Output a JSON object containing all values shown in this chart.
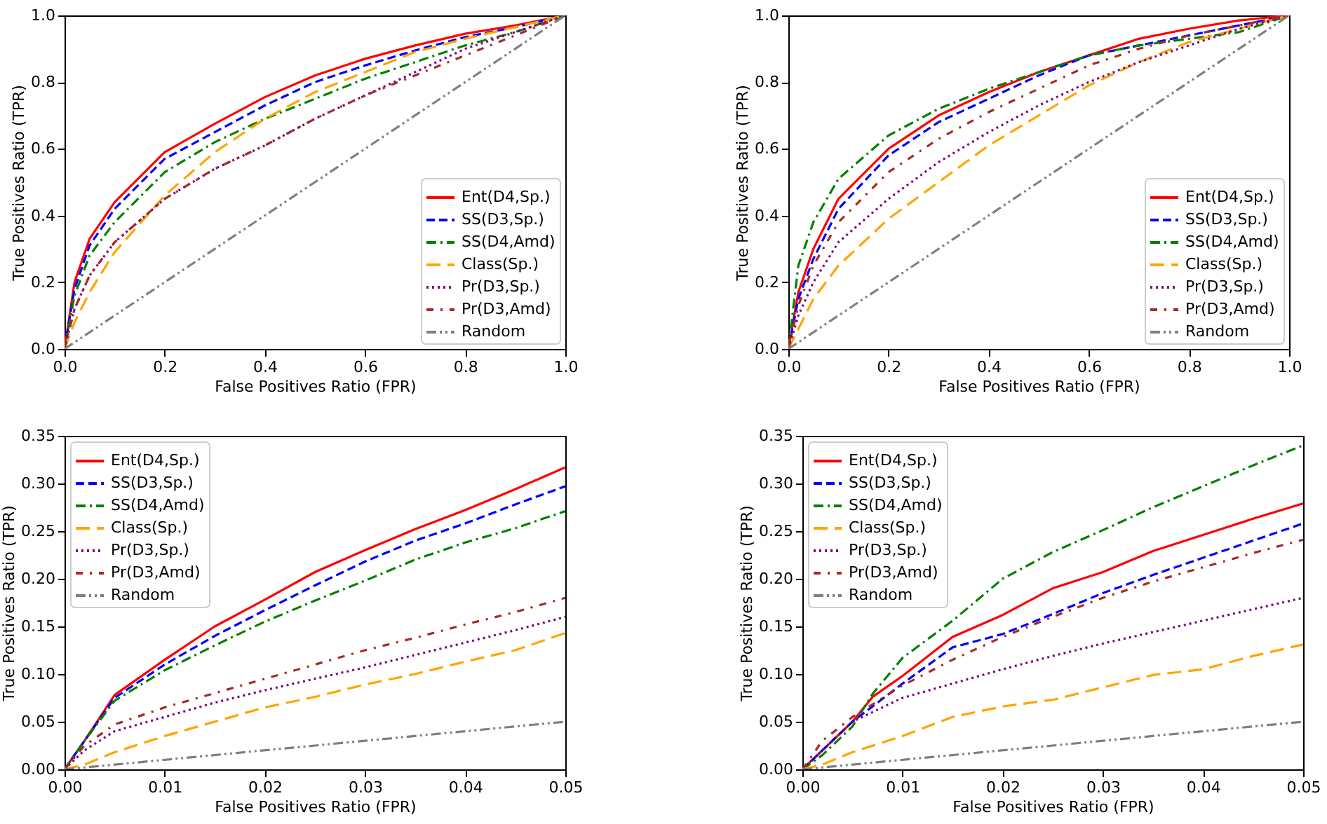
{
  "chart_data": [
    {
      "type": "line",
      "xlabel": "False Positives Ratio (FPR)",
      "ylabel": "True Positives Ratio (TPR)",
      "xlim": [
        0,
        1
      ],
      "ylim": [
        0,
        1
      ],
      "xticks": [
        {
          "value": 0,
          "label": "0.0"
        },
        {
          "value": 0.2,
          "label": "0.2"
        },
        {
          "value": 0.4,
          "label": "0.4"
        },
        {
          "value": 0.6,
          "label": "0.6"
        },
        {
          "value": 0.8,
          "label": "0.8"
        },
        {
          "value": 1,
          "label": "1.0"
        }
      ],
      "yticks": [
        {
          "value": 0,
          "label": "0.0"
        },
        {
          "value": 0.2,
          "label": "0.2"
        },
        {
          "value": 0.4,
          "label": "0.4"
        },
        {
          "value": 0.6,
          "label": "0.6"
        },
        {
          "value": 0.8,
          "label": "0.8"
        },
        {
          "value": 1,
          "label": "1.0"
        }
      ],
      "grid": false,
      "legend": "bottom right",
      "series": [
        {
          "name": "Ent(D4,Sp.)",
          "color": "#ff0000",
          "line_style": "solid",
          "x": [
            0,
            0.02,
            0.05,
            0.1,
            0.2,
            0.3,
            0.4,
            0.5,
            0.6,
            0.7,
            0.8,
            0.9,
            1
          ],
          "values": [
            0,
            0.2,
            0.33,
            0.44,
            0.59,
            0.675,
            0.755,
            0.82,
            0.87,
            0.91,
            0.945,
            0.97,
            1
          ]
        },
        {
          "name": "SS(D3,Sp.)",
          "color": "#0000ff",
          "line_style": "dashed",
          "x": [
            0,
            0.02,
            0.05,
            0.1,
            0.2,
            0.3,
            0.4,
            0.5,
            0.6,
            0.7,
            0.8,
            0.9,
            1
          ],
          "values": [
            0,
            0.18,
            0.31,
            0.42,
            0.57,
            0.65,
            0.73,
            0.8,
            0.85,
            0.895,
            0.935,
            0.965,
            1
          ]
        },
        {
          "name": "SS(D4,Amd)",
          "color": "#008000",
          "line_style": "dashdot",
          "x": [
            0,
            0.02,
            0.05,
            0.1,
            0.2,
            0.3,
            0.4,
            0.5,
            0.6,
            0.7,
            0.8,
            0.9,
            1
          ],
          "values": [
            0,
            0.16,
            0.28,
            0.38,
            0.53,
            0.62,
            0.69,
            0.75,
            0.81,
            0.86,
            0.91,
            0.95,
            1
          ]
        },
        {
          "name": "Class(Sp.)",
          "color": "#ffa500",
          "line_style": "longdash",
          "x": [
            0,
            0.02,
            0.05,
            0.1,
            0.2,
            0.3,
            0.4,
            0.5,
            0.6,
            0.7,
            0.8,
            0.9,
            1
          ],
          "values": [
            0,
            0.08,
            0.17,
            0.29,
            0.46,
            0.59,
            0.69,
            0.77,
            0.83,
            0.89,
            0.93,
            0.965,
            1
          ]
        },
        {
          "name": "Pr(D3,Sp.)",
          "color": "#800080",
          "line_style": "dotted",
          "x": [
            0,
            0.02,
            0.05,
            0.1,
            0.2,
            0.3,
            0.4,
            0.5,
            0.6,
            0.7,
            0.8,
            0.9,
            1
          ],
          "values": [
            0,
            0.12,
            0.22,
            0.32,
            0.45,
            0.54,
            0.61,
            0.69,
            0.76,
            0.83,
            0.9,
            0.95,
            1
          ]
        },
        {
          "name": "Pr(D3,Amd)",
          "color": "#a52a2a",
          "line_style": "loosedashdot",
          "x": [
            0,
            0.02,
            0.05,
            0.1,
            0.2,
            0.3,
            0.4,
            0.5,
            0.6,
            0.7,
            0.8,
            0.9,
            1
          ],
          "values": [
            0,
            0.12,
            0.22,
            0.32,
            0.45,
            0.54,
            0.61,
            0.69,
            0.76,
            0.82,
            0.88,
            0.94,
            1
          ]
        },
        {
          "name": "Random",
          "color": "#808080",
          "line_style": "dashdotdot",
          "x": [
            0,
            1
          ],
          "values": [
            0,
            1
          ]
        }
      ]
    },
    {
      "type": "line",
      "xlabel": "False Positives Ratio (FPR)",
      "ylabel": "True Positives Ratio (TPR)",
      "xlim": [
        0,
        1
      ],
      "ylim": [
        0,
        1
      ],
      "xticks": [
        {
          "value": 0,
          "label": "0.0"
        },
        {
          "value": 0.2,
          "label": "0.2"
        },
        {
          "value": 0.4,
          "label": "0.4"
        },
        {
          "value": 0.6,
          "label": "0.6"
        },
        {
          "value": 0.8,
          "label": "0.8"
        },
        {
          "value": 1,
          "label": "1.0"
        }
      ],
      "yticks": [
        {
          "value": 0,
          "label": "0.0"
        },
        {
          "value": 0.2,
          "label": "0.2"
        },
        {
          "value": 0.4,
          "label": "0.4"
        },
        {
          "value": 0.6,
          "label": "0.6"
        },
        {
          "value": 0.8,
          "label": "0.8"
        },
        {
          "value": 1,
          "label": "1.0"
        }
      ],
      "grid": false,
      "legend": "bottom right",
      "series": [
        {
          "name": "Ent(D4,Sp.)",
          "color": "#ff0000",
          "line_style": "solid",
          "x": [
            0,
            0.02,
            0.05,
            0.1,
            0.2,
            0.3,
            0.4,
            0.5,
            0.6,
            0.7,
            0.8,
            0.9,
            1
          ],
          "values": [
            0,
            0.17,
            0.3,
            0.45,
            0.6,
            0.7,
            0.77,
            0.83,
            0.88,
            0.93,
            0.96,
            0.985,
            1
          ]
        },
        {
          "name": "SS(D3,Sp.)",
          "color": "#0000ff",
          "line_style": "dashed",
          "x": [
            0,
            0.02,
            0.05,
            0.1,
            0.2,
            0.3,
            0.4,
            0.5,
            0.6,
            0.7,
            0.8,
            0.9,
            1
          ],
          "values": [
            0,
            0.15,
            0.27,
            0.42,
            0.58,
            0.68,
            0.75,
            0.82,
            0.88,
            0.91,
            0.94,
            0.97,
            1
          ]
        },
        {
          "name": "SS(D4,Amd)",
          "color": "#008000",
          "line_style": "dashdot",
          "x": [
            0,
            0.02,
            0.05,
            0.1,
            0.2,
            0.3,
            0.4,
            0.5,
            0.6,
            0.7,
            0.8,
            0.9,
            1
          ],
          "values": [
            0,
            0.25,
            0.38,
            0.51,
            0.64,
            0.72,
            0.78,
            0.83,
            0.88,
            0.91,
            0.93,
            0.95,
            1
          ]
        },
        {
          "name": "Class(Sp.)",
          "color": "#ffa500",
          "line_style": "longdash",
          "x": [
            0,
            0.02,
            0.05,
            0.1,
            0.2,
            0.3,
            0.4,
            0.5,
            0.6,
            0.7,
            0.8,
            0.9,
            1
          ],
          "values": [
            0,
            0.06,
            0.15,
            0.25,
            0.39,
            0.5,
            0.61,
            0.7,
            0.79,
            0.86,
            0.92,
            0.96,
            1
          ]
        },
        {
          "name": "Pr(D3,Sp.)",
          "color": "#800080",
          "line_style": "dotted",
          "x": [
            0,
            0.02,
            0.05,
            0.1,
            0.2,
            0.3,
            0.4,
            0.5,
            0.6,
            0.7,
            0.8,
            0.9,
            1
          ],
          "values": [
            0,
            0.1,
            0.2,
            0.32,
            0.45,
            0.56,
            0.65,
            0.73,
            0.8,
            0.86,
            0.91,
            0.96,
            1
          ]
        },
        {
          "name": "Pr(D3,Amd)",
          "color": "#a52a2a",
          "line_style": "loosedashdot",
          "x": [
            0,
            0.02,
            0.05,
            0.1,
            0.2,
            0.3,
            0.4,
            0.5,
            0.6,
            0.7,
            0.8,
            0.9,
            1
          ],
          "values": [
            0,
            0.13,
            0.25,
            0.38,
            0.53,
            0.63,
            0.71,
            0.78,
            0.85,
            0.9,
            0.94,
            0.97,
            1
          ]
        },
        {
          "name": "Random",
          "color": "#808080",
          "line_style": "dashdotdot",
          "x": [
            0,
            1
          ],
          "values": [
            0,
            1
          ]
        }
      ]
    },
    {
      "type": "line",
      "xlabel": "False Positives Ratio (FPR)",
      "ylabel": "True Positives Ratio (TPR)",
      "xlim": [
        0,
        0.05
      ],
      "ylim": [
        0,
        0.35
      ],
      "xticks": [
        {
          "value": 0,
          "label": "0.00"
        },
        {
          "value": 0.01,
          "label": "0.01"
        },
        {
          "value": 0.02,
          "label": "0.02"
        },
        {
          "value": 0.03,
          "label": "0.03"
        },
        {
          "value": 0.04,
          "label": "0.04"
        },
        {
          "value": 0.05,
          "label": "0.05"
        }
      ],
      "yticks": [
        {
          "value": 0,
          "label": "0.00"
        },
        {
          "value": 0.05,
          "label": "0.05"
        },
        {
          "value": 0.1,
          "label": "0.10"
        },
        {
          "value": 0.15,
          "label": "0.15"
        },
        {
          "value": 0.2,
          "label": "0.20"
        },
        {
          "value": 0.25,
          "label": "0.25"
        },
        {
          "value": 0.3,
          "label": "0.30"
        },
        {
          "value": 0.35,
          "label": "0.35"
        }
      ],
      "grid": false,
      "legend": "top left",
      "series": [
        {
          "name": "Ent(D4,Sp.)",
          "color": "#ff0000",
          "line_style": "solid",
          "x": [
            0,
            0.002,
            0.005,
            0.01,
            0.015,
            0.02,
            0.025,
            0.03,
            0.035,
            0.04,
            0.045,
            0.05
          ],
          "values": [
            0,
            0.03,
            0.078,
            0.115,
            0.15,
            0.178,
            0.207,
            0.23,
            0.252,
            0.272,
            0.294,
            0.317
          ]
        },
        {
          "name": "SS(D3,Sp.)",
          "color": "#0000ff",
          "line_style": "dashed",
          "x": [
            0,
            0.002,
            0.005,
            0.01,
            0.015,
            0.02,
            0.025,
            0.03,
            0.035,
            0.04,
            0.045,
            0.05
          ],
          "values": [
            0,
            0.03,
            0.075,
            0.11,
            0.14,
            0.167,
            0.193,
            0.218,
            0.24,
            0.258,
            0.278,
            0.297
          ]
        },
        {
          "name": "SS(D4,Amd)",
          "color": "#008000",
          "line_style": "dashdot",
          "x": [
            0,
            0.002,
            0.005,
            0.01,
            0.015,
            0.02,
            0.025,
            0.03,
            0.035,
            0.04,
            0.045,
            0.05
          ],
          "values": [
            0,
            0.03,
            0.072,
            0.104,
            0.13,
            0.155,
            0.177,
            0.198,
            0.22,
            0.238,
            0.253,
            0.271
          ]
        },
        {
          "name": "Class(Sp.)",
          "color": "#ffa500",
          "line_style": "longdash",
          "x": [
            0,
            0.002,
            0.005,
            0.01,
            0.015,
            0.02,
            0.025,
            0.03,
            0.035,
            0.04,
            0.045,
            0.05
          ],
          "values": [
            0,
            0.005,
            0.018,
            0.035,
            0.05,
            0.065,
            0.076,
            0.089,
            0.1,
            0.113,
            0.125,
            0.143
          ]
        },
        {
          "name": "Pr(D3,Sp.)",
          "color": "#800080",
          "line_style": "dotted",
          "x": [
            0,
            0.002,
            0.005,
            0.01,
            0.015,
            0.02,
            0.025,
            0.03,
            0.035,
            0.04,
            0.045,
            0.05
          ],
          "values": [
            0,
            0.02,
            0.04,
            0.055,
            0.07,
            0.083,
            0.095,
            0.107,
            0.12,
            0.133,
            0.146,
            0.16
          ]
        },
        {
          "name": "Pr(D3,Amd)",
          "color": "#a52a2a",
          "line_style": "loosedashdot",
          "x": [
            0,
            0.002,
            0.005,
            0.01,
            0.015,
            0.02,
            0.025,
            0.03,
            0.035,
            0.04,
            0.045,
            0.05
          ],
          "values": [
            0,
            0.025,
            0.047,
            0.065,
            0.08,
            0.095,
            0.11,
            0.125,
            0.138,
            0.152,
            0.165,
            0.18
          ]
        },
        {
          "name": "Random",
          "color": "#808080",
          "line_style": "dashdotdot",
          "x": [
            0,
            0.05
          ],
          "values": [
            0,
            0.05
          ]
        }
      ]
    },
    {
      "type": "line",
      "xlabel": "False Positives Ratio (FPR)",
      "ylabel": "True Positives Ratio (TPR)",
      "xlim": [
        0,
        0.05
      ],
      "ylim": [
        0,
        0.35
      ],
      "xticks": [
        {
          "value": 0,
          "label": "0.00"
        },
        {
          "value": 0.01,
          "label": "0.01"
        },
        {
          "value": 0.02,
          "label": "0.02"
        },
        {
          "value": 0.03,
          "label": "0.03"
        },
        {
          "value": 0.04,
          "label": "0.04"
        },
        {
          "value": 0.05,
          "label": "0.05"
        }
      ],
      "yticks": [
        {
          "value": 0,
          "label": "0.00"
        },
        {
          "value": 0.05,
          "label": "0.05"
        },
        {
          "value": 0.1,
          "label": "0.10"
        },
        {
          "value": 0.15,
          "label": "0.15"
        },
        {
          "value": 0.2,
          "label": "0.20"
        },
        {
          "value": 0.25,
          "label": "0.25"
        },
        {
          "value": 0.3,
          "label": "0.30"
        },
        {
          "value": 0.35,
          "label": "0.35"
        }
      ],
      "grid": false,
      "legend": "top left",
      "series": [
        {
          "name": "Ent(D4,Sp.)",
          "color": "#ff0000",
          "line_style": "solid",
          "x": [
            0,
            0.002,
            0.005,
            0.007,
            0.01,
            0.015,
            0.02,
            0.025,
            0.03,
            0.035,
            0.04,
            0.045,
            0.05
          ],
          "values": [
            0,
            0.02,
            0.05,
            0.076,
            0.098,
            0.139,
            0.162,
            0.19,
            0.207,
            0.229,
            0.246,
            0.263,
            0.279
          ]
        },
        {
          "name": "SS(D3,Sp.)",
          "color": "#0000ff",
          "line_style": "dashed",
          "x": [
            0,
            0.002,
            0.005,
            0.01,
            0.015,
            0.02,
            0.025,
            0.03,
            0.035,
            0.04,
            0.045,
            0.05
          ],
          "values": [
            0,
            0.02,
            0.05,
            0.09,
            0.128,
            0.142,
            0.163,
            0.185,
            0.204,
            0.222,
            0.24,
            0.258
          ]
        },
        {
          "name": "SS(D4,Amd)",
          "color": "#008000",
          "line_style": "dashdot",
          "x": [
            0,
            0.002,
            0.005,
            0.007,
            0.01,
            0.015,
            0.02,
            0.025,
            0.03,
            0.035,
            0.04,
            0.045,
            0.05
          ],
          "values": [
            0,
            0.015,
            0.045,
            0.079,
            0.117,
            0.156,
            0.2,
            0.228,
            0.251,
            0.275,
            0.297,
            0.319,
            0.34
          ]
        },
        {
          "name": "Class(Sp.)",
          "color": "#ffa500",
          "line_style": "longdash",
          "x": [
            0,
            0.002,
            0.005,
            0.01,
            0.015,
            0.02,
            0.025,
            0.03,
            0.035,
            0.04,
            0.045,
            0.05
          ],
          "values": [
            0,
            0.005,
            0.018,
            0.035,
            0.055,
            0.066,
            0.073,
            0.086,
            0.099,
            0.105,
            0.119,
            0.131
          ]
        },
        {
          "name": "Pr(D3,Sp.)",
          "color": "#800080",
          "line_style": "dotted",
          "x": [
            0,
            0.002,
            0.005,
            0.01,
            0.015,
            0.02,
            0.025,
            0.03,
            0.035,
            0.04,
            0.045,
            0.05
          ],
          "values": [
            0,
            0.02,
            0.05,
            0.075,
            0.09,
            0.105,
            0.119,
            0.132,
            0.144,
            0.156,
            0.168,
            0.18
          ]
        },
        {
          "name": "Pr(D3,Amd)",
          "color": "#a52a2a",
          "line_style": "loosedashdot",
          "x": [
            0,
            0.002,
            0.005,
            0.01,
            0.015,
            0.02,
            0.025,
            0.03,
            0.035,
            0.04,
            0.045,
            0.05
          ],
          "values": [
            0,
            0.03,
            0.055,
            0.088,
            0.115,
            0.139,
            0.16,
            0.18,
            0.197,
            0.212,
            0.227,
            0.241
          ]
        },
        {
          "name": "Random",
          "color": "#808080",
          "line_style": "dashdotdot",
          "x": [
            0,
            0.05
          ],
          "values": [
            0,
            0.05
          ]
        }
      ]
    }
  ]
}
